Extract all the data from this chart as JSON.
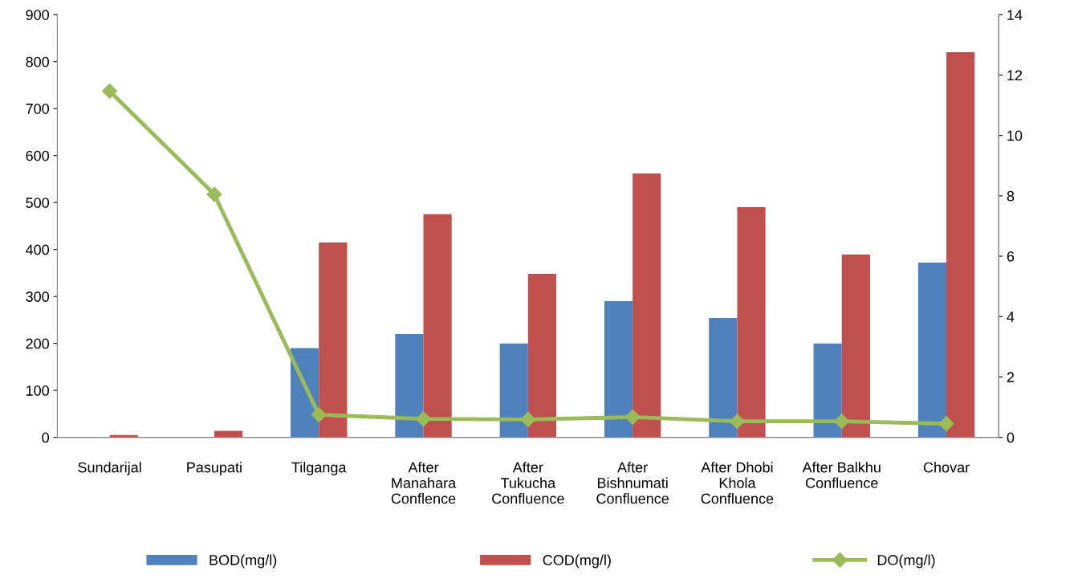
{
  "chart_data": {
    "type": "bar",
    "categories": [
      "Sundarijal",
      "Pasupati",
      "Tilganga",
      "After\nManahara\nConflence",
      "After\nTukucha\nConfluence",
      "After\nBishnumati\nConfluence",
      "After Dhobi\nKhola\nConfluence",
      "After Balkhu\nConfluence",
      "Chovar"
    ],
    "series": [
      {
        "name": "BOD(mg/l)",
        "color": "#4f81bd",
        "values": [
          0,
          0,
          190,
          220,
          200,
          290,
          254,
          200,
          372
        ]
      },
      {
        "name": "COD(mg/l)",
        "color": "#c0504d",
        "values": [
          5,
          14,
          415,
          475,
          348,
          562,
          490,
          389,
          820
        ]
      },
      {
        "name": "DO(mg/l)",
        "type": "line",
        "axis": "y2",
        "color": "#9bbb59",
        "marker": "diamond",
        "values": [
          11.47,
          8.05,
          0.75,
          0.61,
          0.59,
          0.67,
          0.53,
          0.53,
          0.45
        ]
      }
    ],
    "ylim": [
      0,
      900
    ],
    "yticks": [
      0,
      100,
      200,
      300,
      400,
      500,
      600,
      700,
      800,
      900
    ],
    "y2lim": [
      0,
      14
    ],
    "y2ticks": [
      0,
      2,
      4,
      6,
      8,
      10,
      12,
      14
    ],
    "grid": false,
    "legend": "bottom"
  }
}
